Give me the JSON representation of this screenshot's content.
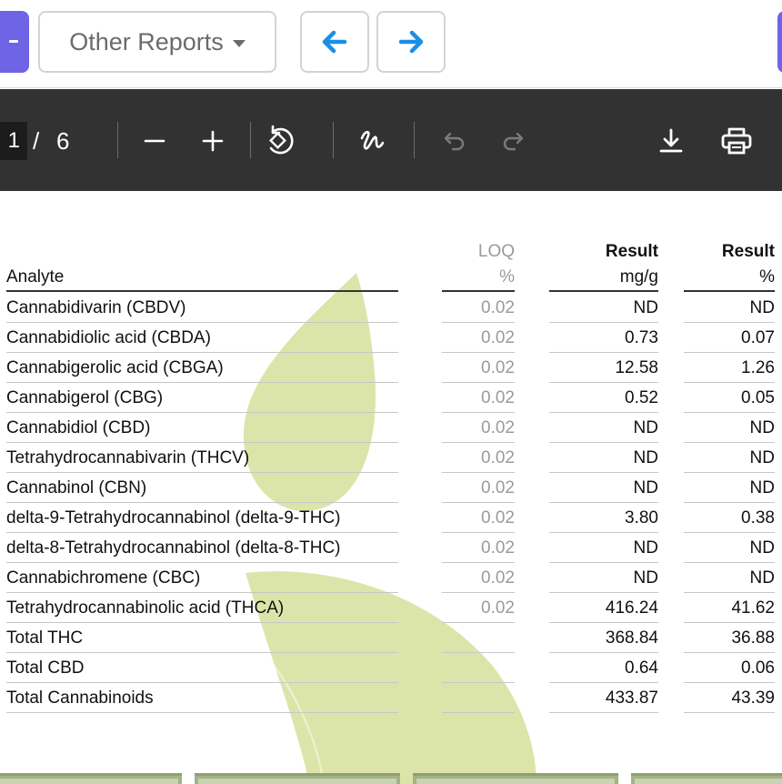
{
  "nav": {
    "other_reports_label": "Other Reports",
    "prev_icon": "arrow-left-icon",
    "next_icon": "arrow-right-icon",
    "accent": "#6f63e6",
    "arrow_color": "#1a8fe3"
  },
  "pdf_toolbar": {
    "current_page": "1",
    "separator": "/",
    "total_pages": "6",
    "background": "#323232"
  },
  "table": {
    "headers": {
      "analyte": "Analyte",
      "loq_top": "LOQ",
      "loq_unit": "%",
      "result_mg_top": "Result",
      "result_mg_unit": "mg/g",
      "result_pct_top": "Result",
      "result_pct_unit": "%"
    },
    "rows": [
      {
        "analyte": "Cannabidivarin (CBDV)",
        "loq": "0.02",
        "mg_g": "ND",
        "pct": "ND"
      },
      {
        "analyte": "Cannabidiolic acid (CBDA)",
        "loq": "0.02",
        "mg_g": "0.73",
        "pct": "0.07"
      },
      {
        "analyte": "Cannabigerolic acid (CBGA)",
        "loq": "0.02",
        "mg_g": "12.58",
        "pct": "1.26"
      },
      {
        "analyte": "Cannabigerol (CBG)",
        "loq": "0.02",
        "mg_g": "0.52",
        "pct": "0.05"
      },
      {
        "analyte": "Cannabidiol (CBD)",
        "loq": "0.02",
        "mg_g": "ND",
        "pct": "ND"
      },
      {
        "analyte": "Tetrahydrocannabivarin (THCV)",
        "loq": "0.02",
        "mg_g": "ND",
        "pct": "ND"
      },
      {
        "analyte": "Cannabinol (CBN)",
        "loq": "0.02",
        "mg_g": "ND",
        "pct": "ND"
      },
      {
        "analyte": "delta-9-Tetrahydrocannabinol (delta-9-THC)",
        "loq": "0.02",
        "mg_g": "3.80",
        "pct": "0.38"
      },
      {
        "analyte": "delta-8-Tetrahydrocannabinol (delta-8-THC)",
        "loq": "0.02",
        "mg_g": "ND",
        "pct": "ND"
      },
      {
        "analyte": "Cannabichromene (CBC)",
        "loq": "0.02",
        "mg_g": "ND",
        "pct": "ND"
      },
      {
        "analyte": "Tetrahydrocannabinolic acid (THCA)",
        "loq": "0.02",
        "mg_g": "416.24",
        "pct": "41.62"
      },
      {
        "analyte": "Total THC",
        "loq": "",
        "mg_g": "368.84",
        "pct": "36.88"
      },
      {
        "analyte": "Total CBD",
        "loq": "",
        "mg_g": "0.64",
        "pct": "0.06"
      },
      {
        "analyte": "Total Cannabinoids",
        "loq": "",
        "mg_g": "433.87",
        "pct": "43.39"
      }
    ]
  },
  "colors": {
    "leaf": "#d6e19a",
    "tab": "#a3b287"
  }
}
